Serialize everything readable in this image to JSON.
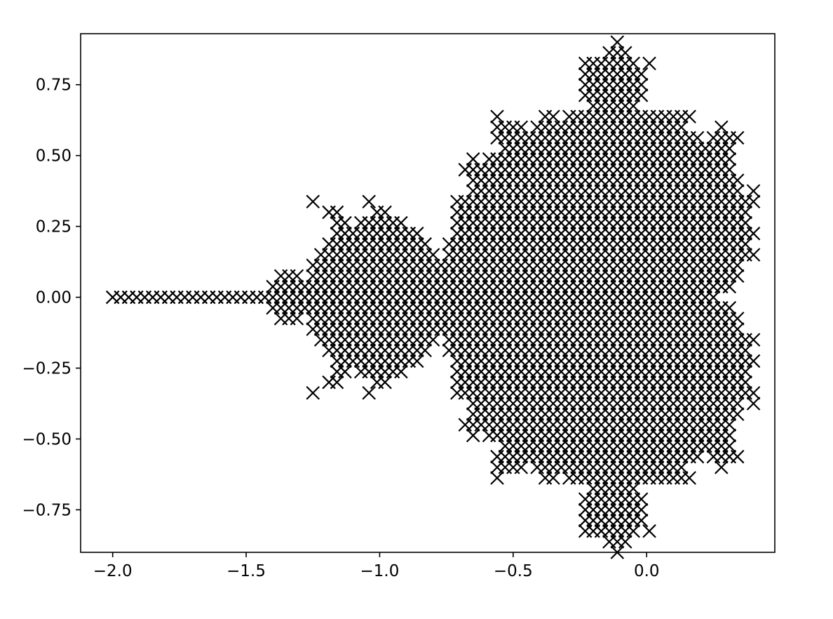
{
  "chart_data": {
    "type": "scatter",
    "title": "",
    "xlabel": "",
    "ylabel": "",
    "xlim": [
      -2.12,
      0.48
    ],
    "ylim": [
      -0.9,
      0.93
    ],
    "x_ticks": [
      {
        "value": -2.0,
        "label": "−2.0"
      },
      {
        "value": -1.5,
        "label": "−1.5"
      },
      {
        "value": -1.0,
        "label": "−1.0"
      },
      {
        "value": -0.5,
        "label": "−0.5"
      },
      {
        "value": 0.0,
        "label": "0.0"
      }
    ],
    "y_ticks": [
      {
        "value": 0.75,
        "label": "0.75"
      },
      {
        "value": 0.5,
        "label": "0.50"
      },
      {
        "value": 0.25,
        "label": "0.25"
      },
      {
        "value": 0.0,
        "label": "0.00"
      },
      {
        "value": -0.25,
        "label": "−0.25"
      },
      {
        "value": -0.5,
        "label": "−0.50"
      },
      {
        "value": -0.75,
        "label": "−0.75"
      }
    ],
    "marker": "x",
    "marker_color": "#000000",
    "grid": false,
    "legend": "none",
    "series": [
      {
        "x_min": -2.0,
        "x_max": 0.4,
        "x_step": 0.03,
        "y_step": 0.0375,
        "rule": "points c = x + iy on the grid (rows symmetric about y = 0) that do not escape |z| > 2 within 20 iterations of z → z² + c",
        "max_iter": 20
      }
    ]
  }
}
